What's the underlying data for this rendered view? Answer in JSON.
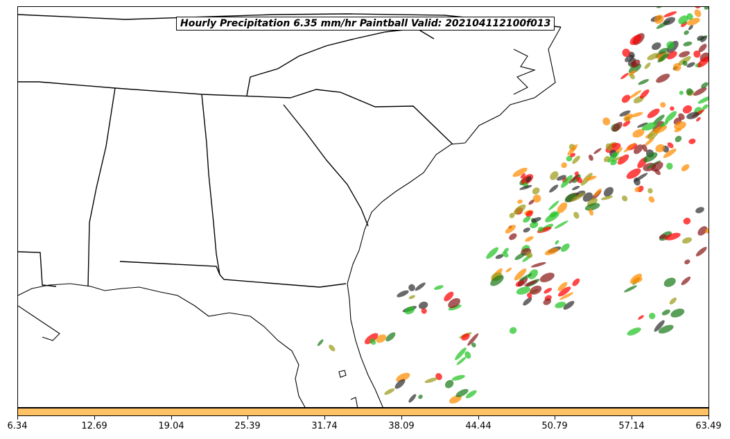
{
  "title": "Hourly Precipitation 6.35 mm/hr Paintball Valid: 202104112100f013",
  "colorbar": {
    "color": "#ffc265",
    "ticks": [
      "6.34",
      "12.69",
      "19.04",
      "25.39",
      "31.74",
      "38.09",
      "44.44",
      "50.79",
      "57.14",
      "63.49"
    ]
  },
  "map": {
    "region": "Southeastern United States and western Atlantic",
    "features": [
      "state-borders",
      "coastlines"
    ],
    "member_colors": [
      "#ff0000",
      "#ff8c00",
      "#22c322",
      "#1a7a1a",
      "#9b9b1a",
      "#8b1a1a",
      "#303030"
    ]
  }
}
